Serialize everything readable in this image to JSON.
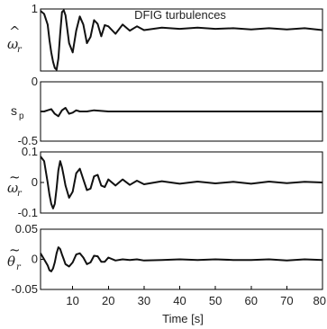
{
  "chart_data": [
    {
      "type": "line",
      "title": "DFIG turbulences",
      "ylabel": {
        "base": "ω",
        "accent": "^",
        "sub": "r"
      },
      "xlim": [
        1,
        80
      ],
      "ylim": [
        0,
        1
      ],
      "yticks": [
        {
          "value": 1,
          "label": "1"
        },
        {
          "value": 0,
          "label": ""
        }
      ],
      "series": [
        {
          "x": [
            1,
            2,
            3,
            3.5,
            4,
            4.5,
            5,
            5.5,
            6,
            6.5,
            7,
            7.5,
            8,
            9,
            10,
            11,
            12,
            13,
            14,
            15,
            16,
            17,
            18,
            19,
            20,
            22,
            24,
            26,
            28,
            30,
            35,
            40,
            45,
            50,
            55,
            60,
            65,
            70,
            75,
            80
          ],
          "y": [
            0.97,
            0.92,
            0.75,
            0.5,
            0.3,
            0.15,
            0.05,
            0.02,
            0.2,
            0.6,
            0.95,
            0.98,
            0.9,
            0.45,
            0.3,
            0.65,
            0.88,
            0.75,
            0.45,
            0.55,
            0.82,
            0.76,
            0.56,
            0.74,
            0.72,
            0.6,
            0.75,
            0.65,
            0.72,
            0.66,
            0.7,
            0.68,
            0.7,
            0.68,
            0.69,
            0.67,
            0.69,
            0.67,
            0.69,
            0.66
          ]
        }
      ]
    },
    {
      "type": "line",
      "ylabel": {
        "base": "s",
        "sub": "p"
      },
      "xlim": [
        1,
        80
      ],
      "ylim": [
        -0.5,
        0
      ],
      "yticks": [
        {
          "value": 0,
          "label": "0"
        },
        {
          "value": -0.5,
          "label": "-0.5"
        }
      ],
      "series": [
        {
          "x": [
            1,
            2,
            3,
            4,
            5,
            6,
            7,
            8,
            9,
            10,
            11,
            12,
            14,
            16,
            20,
            25,
            30,
            40,
            50,
            60,
            70,
            80
          ],
          "y": [
            -0.25,
            -0.25,
            -0.24,
            -0.23,
            -0.27,
            -0.29,
            -0.24,
            -0.22,
            -0.27,
            -0.26,
            -0.24,
            -0.25,
            -0.25,
            -0.24,
            -0.25,
            -0.25,
            -0.25,
            -0.25,
            -0.25,
            -0.25,
            -0.25,
            -0.25
          ]
        }
      ]
    },
    {
      "type": "line",
      "ylabel": {
        "base": "ω",
        "accent": "~",
        "sub": "r"
      },
      "xlim": [
        1,
        80
      ],
      "ylim": [
        -0.1,
        0.1
      ],
      "yticks": [
        {
          "value": 0.1,
          "label": "0.1"
        },
        {
          "value": 0,
          "label": "0"
        },
        {
          "value": -0.1,
          "label": "-0.1"
        }
      ],
      "series": [
        {
          "x": [
            1,
            2,
            3,
            3.5,
            4,
            4.5,
            5,
            5.5,
            6,
            6.5,
            7,
            7.5,
            8,
            9,
            10,
            11,
            12,
            13,
            14,
            15,
            16,
            17,
            18,
            19,
            20,
            22,
            24,
            26,
            28,
            30,
            35,
            40,
            45,
            50,
            55,
            60,
            65,
            70,
            75,
            80
          ],
          "y": [
            0.085,
            0.07,
            0.0,
            -0.04,
            -0.07,
            -0.085,
            -0.07,
            -0.02,
            0.04,
            0.07,
            0.05,
            0.02,
            -0.01,
            -0.05,
            -0.03,
            0.03,
            0.045,
            0.01,
            -0.025,
            -0.02,
            0.02,
            0.025,
            -0.01,
            -0.015,
            0.01,
            -0.01,
            0.01,
            -0.008,
            0.006,
            -0.006,
            0.004,
            -0.004,
            0.003,
            -0.003,
            0.002,
            -0.004,
            0.003,
            -0.002,
            0.002,
            0.0
          ]
        }
      ]
    },
    {
      "type": "line",
      "ylabel": {
        "base": "θ",
        "accent": "~",
        "sub": "r"
      },
      "xlabel": "Time [s]",
      "xlim": [
        1,
        80
      ],
      "ylim": [
        -0.05,
        0.05
      ],
      "yticks": [
        {
          "value": 0.05,
          "label": "0.05"
        },
        {
          "value": 0,
          "label": "0"
        },
        {
          "value": -0.05,
          "label": "-0.05"
        }
      ],
      "xticks": [
        {
          "value": 10,
          "label": "10"
        },
        {
          "value": 20,
          "label": "20"
        },
        {
          "value": 30,
          "label": "30"
        },
        {
          "value": 40,
          "label": "40"
        },
        {
          "value": 50,
          "label": "50"
        },
        {
          "value": 60,
          "label": "60"
        },
        {
          "value": 70,
          "label": "70"
        },
        {
          "value": 80,
          "label": "80"
        }
      ],
      "series": [
        {
          "x": [
            1,
            2,
            3,
            3.5,
            4,
            4.5,
            5,
            5.5,
            6,
            6.5,
            7,
            7.5,
            8,
            9,
            10,
            11,
            12,
            13,
            14,
            15,
            16,
            17,
            18,
            19,
            20,
            22,
            24,
            26,
            28,
            30,
            35,
            40,
            45,
            50,
            55,
            60,
            65,
            70,
            75,
            80
          ],
          "y": [
            0.01,
            0.0,
            -0.01,
            -0.018,
            -0.02,
            -0.015,
            -0.005,
            0.01,
            0.02,
            0.017,
            0.008,
            0.0,
            -0.008,
            -0.012,
            -0.005,
            0.008,
            0.01,
            0.003,
            -0.008,
            -0.005,
            0.006,
            0.005,
            -0.004,
            -0.004,
            0.003,
            -0.002,
            0.0,
            -0.001,
            0.0,
            -0.002,
            -0.001,
            0.0,
            -0.001,
            0.0,
            -0.001,
            -0.001,
            0.0,
            -0.002,
            0.0,
            -0.001
          ]
        }
      ]
    }
  ]
}
